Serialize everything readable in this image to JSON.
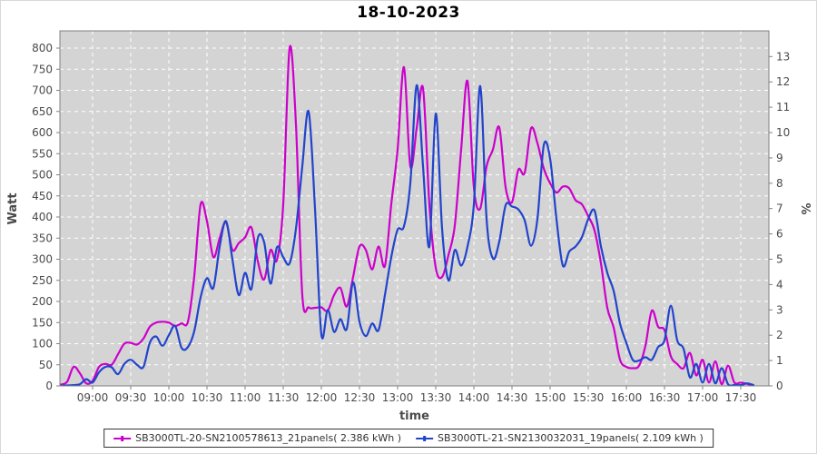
{
  "title": "18-10-2023",
  "legend": {
    "items": [
      {
        "label": "SB3000TL-20-SN2100578613_21panels( 2.386 kWh )",
        "color": "#cc00cc"
      },
      {
        "label": "SB3000TL-21-SN2130032031_19panels( 2.109 kWh )",
        "color": "#2244cc"
      }
    ]
  },
  "colors": {
    "plot_bg": "#d4d4d4",
    "grid": "#ffffff",
    "axis_border": "#808080",
    "tick_text": "#4a4a4a",
    "axis_label_text": "#4a4a4a",
    "series1": "#cc00cc",
    "series2": "#2244cc"
  },
  "chart_data": {
    "type": "line",
    "title": "18-10-2023",
    "xlabel": "time",
    "ylabel_left": "Watt",
    "ylabel_right": "%",
    "grid": true,
    "legend_position": "bottom",
    "y_left_ticks": [
      0,
      50,
      100,
      150,
      200,
      250,
      300,
      350,
      400,
      450,
      500,
      550,
      600,
      650,
      700,
      750,
      800
    ],
    "y_right_ticks": [
      0,
      1,
      2,
      3,
      4,
      5,
      6,
      7,
      8,
      9,
      10,
      11,
      12,
      13
    ],
    "y_left_range": [
      0,
      800
    ],
    "y_right_range": [
      0,
      13
    ],
    "x_ticks": [
      "09:00",
      "09:30",
      "10:00",
      "10:30",
      "11:00",
      "11:30",
      "12:00",
      "12:30",
      "13:00",
      "13:30",
      "14:00",
      "14:30",
      "15:00",
      "15:30",
      "16:00",
      "16:30",
      "17:00",
      "17:30"
    ],
    "x": [
      "08:35",
      "08:40",
      "08:45",
      "08:50",
      "08:55",
      "09:00",
      "09:05",
      "09:10",
      "09:15",
      "09:20",
      "09:25",
      "09:30",
      "09:35",
      "09:40",
      "09:45",
      "09:50",
      "09:55",
      "10:00",
      "10:05",
      "10:10",
      "10:15",
      "10:20",
      "10:25",
      "10:30",
      "10:35",
      "10:40",
      "10:45",
      "10:50",
      "10:55",
      "11:00",
      "11:05",
      "11:10",
      "11:15",
      "11:20",
      "11:25",
      "11:30",
      "11:35",
      "11:40",
      "11:45",
      "11:50",
      "11:55",
      "12:00",
      "12:05",
      "12:10",
      "12:15",
      "12:20",
      "12:25",
      "12:30",
      "12:35",
      "12:40",
      "12:45",
      "12:50",
      "12:55",
      "13:00",
      "13:05",
      "13:10",
      "13:15",
      "13:20",
      "13:25",
      "13:30",
      "13:35",
      "13:40",
      "13:45",
      "13:50",
      "13:55",
      "14:00",
      "14:05",
      "14:10",
      "14:15",
      "14:20",
      "14:25",
      "14:30",
      "14:35",
      "14:40",
      "14:45",
      "14:50",
      "14:55",
      "15:00",
      "15:05",
      "15:10",
      "15:15",
      "15:20",
      "15:25",
      "15:30",
      "15:35",
      "15:40",
      "15:45",
      "15:50",
      "15:55",
      "16:00",
      "16:05",
      "16:10",
      "16:15",
      "16:20",
      "16:25",
      "16:30",
      "16:35",
      "16:40",
      "16:45",
      "16:50",
      "16:55",
      "17:00",
      "17:05",
      "17:10",
      "17:15",
      "17:20",
      "17:25",
      "17:30",
      "17:35",
      "17:40"
    ],
    "series": [
      {
        "name": "SB3000TL-20-SN2100578613_21panels( 2.386 kWh )",
        "color": "#cc00cc",
        "values": [
          3,
          10,
          45,
          30,
          6,
          12,
          45,
          52,
          50,
          75,
          100,
          102,
          98,
          112,
          140,
          150,
          152,
          150,
          142,
          148,
          152,
          260,
          430,
          390,
          305,
          350,
          388,
          322,
          338,
          352,
          375,
          295,
          252,
          322,
          298,
          430,
          800,
          620,
          215,
          186,
          185,
          186,
          178,
          215,
          232,
          188,
          258,
          330,
          322,
          276,
          330,
          284,
          430,
          560,
          755,
          520,
          610,
          705,
          430,
          280,
          258,
          310,
          380,
          560,
          722,
          470,
          420,
          520,
          560,
          612,
          470,
          435,
          512,
          505,
          610,
          575,
          515,
          480,
          458,
          472,
          468,
          440,
          430,
          402,
          368,
          290,
          185,
          138,
          62,
          45,
          42,
          48,
          95,
          178,
          140,
          132,
          70,
          52,
          42,
          78,
          25,
          62,
          8,
          58,
          4,
          48,
          8,
          8,
          5,
          0
        ]
      },
      {
        "name": "SB3000TL-21-SN2130032031_19panels( 2.109 kWh )",
        "color": "#2244cc",
        "values": [
          0,
          1,
          2,
          4,
          16,
          8,
          32,
          45,
          44,
          28,
          52,
          62,
          50,
          45,
          102,
          117,
          95,
          120,
          142,
          90,
          92,
          130,
          210,
          255,
          232,
          330,
          390,
          300,
          215,
          268,
          230,
          350,
          340,
          242,
          328,
          305,
          290,
          372,
          520,
          650,
          420,
          122,
          180,
          128,
          158,
          135,
          245,
          152,
          118,
          148,
          132,
          215,
          305,
          370,
          378,
          480,
          712,
          520,
          330,
          645,
          372,
          250,
          322,
          285,
          330,
          430,
          710,
          395,
          302,
          342,
          428,
          425,
          418,
          392,
          332,
          395,
          570,
          538,
          395,
          285,
          318,
          330,
          352,
          395,
          415,
          330,
          268,
          225,
          148,
          102,
          62,
          60,
          68,
          62,
          92,
          108,
          190,
          108,
          88,
          20,
          52,
          8,
          52,
          6,
          42,
          4,
          2,
          2,
          6,
          2
        ]
      }
    ]
  }
}
